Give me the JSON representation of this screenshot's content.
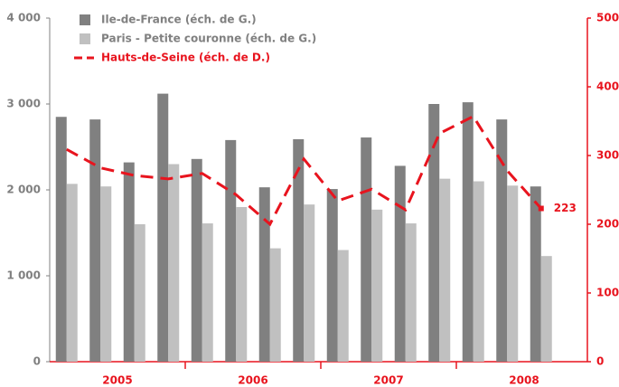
{
  "chart_data": {
    "type": "bar_line",
    "categories": [
      null,
      null,
      null,
      null,
      null,
      null,
      null,
      null,
      null,
      null,
      null,
      null,
      null,
      null,
      null,
      null
    ],
    "x_groups": [
      "2005",
      "2006",
      "2007",
      "2008"
    ],
    "series": [
      {
        "name": "Ile-de-France (éch. de G.)",
        "color": "#808080",
        "type": "bar",
        "axis": "y",
        "values": [
          2850,
          2820,
          2320,
          3120,
          2360,
          2580,
          2030,
          2590,
          2010,
          2610,
          2280,
          3000,
          3020,
          2820,
          2040,
          null
        ]
      },
      {
        "name": "Paris - Petite couronne (éch. de G.)",
        "color": "#c0c0c0",
        "type": "bar",
        "axis": "y",
        "values": [
          2070,
          2040,
          1600,
          2300,
          1610,
          1800,
          1320,
          1830,
          1300,
          1770,
          1610,
          2130,
          2100,
          2050,
          1230,
          null
        ]
      },
      {
        "name": "Hauts-de-Seine (éch. de D.)",
        "color": "#e8141e",
        "type": "line",
        "axis": "y2",
        "values": [
          309,
          282,
          271,
          266,
          274,
          243,
          200,
          295,
          234,
          251,
          221,
          332,
          357,
          278,
          223,
          null
        ],
        "value_labels": [
          null,
          null,
          null,
          null,
          null,
          null,
          null,
          null,
          null,
          null,
          null,
          null,
          null,
          null,
          "223",
          null
        ]
      }
    ],
    "ylim": [
      0,
      4000
    ],
    "yticks": [
      0,
      {
        "value": 1000,
        "label": "1 000"
      },
      {
        "value": 2000,
        "label": "2 000"
      },
      {
        "value": 3000,
        "label": "3 000"
      },
      {
        "value": 4000,
        "label": "4 000"
      }
    ],
    "y2lim": [
      0,
      500
    ],
    "y2ticks": [
      0,
      100,
      200,
      300,
      400,
      500
    ],
    "legend": "top-left"
  }
}
